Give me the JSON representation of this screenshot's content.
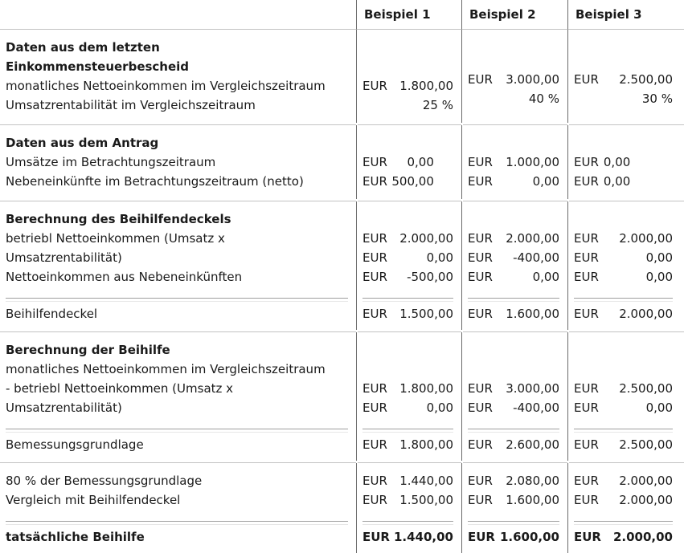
{
  "colors": {
    "background": "#ffffff",
    "text": "#1a1a1a",
    "column_border": "#6b6b6b",
    "row_separator": "#c3c3c3",
    "sum_line_top": "#9e9e9e",
    "sum_line_bottom": "#e7e7e7"
  },
  "header": {
    "examples": [
      "Beispiel 1",
      "Beispiel 2",
      "Beispiel 3"
    ]
  },
  "sections": [
    {
      "heading": [
        "Daten aus dem letzten",
        "Einkommensteuerbescheid"
      ],
      "rows": [
        {
          "label": "monatliches Nettoeinkommen im Vergleichszeitraum",
          "values": [
            {
              "cur": "EUR",
              "amt": "1.800,00"
            },
            {
              "cur": "EUR",
              "amt": "3.000,00"
            },
            {
              "cur": "EUR",
              "amt": "2.500,00"
            }
          ]
        },
        {
          "label": "Umsatzrentabilität im Vergleichszeitraum",
          "values": [
            {
              "amt": "25 %"
            },
            {
              "amt": "40 %"
            },
            {
              "amt": "30 %"
            }
          ]
        }
      ]
    },
    {
      "heading": [
        "Daten aus dem Antrag"
      ],
      "rows": [
        {
          "label": "Umsätze im Betrachtungszeitraum",
          "values": [
            {
              "cur": "EUR",
              "amt": "0,00"
            },
            {
              "cur": "EUR",
              "amt": "1.000,00"
            },
            {
              "cur": "EUR",
              "amt": "0,00"
            }
          ]
        },
        {
          "label": "Nebeneinkünfte im Betrachtungszeitraum (netto)",
          "values": [
            {
              "cur": "EUR",
              "amt": "500,00"
            },
            {
              "cur": "EUR",
              "amt": "0,00"
            },
            {
              "cur": "EUR",
              "amt": "0,00"
            }
          ]
        }
      ]
    },
    {
      "heading": [
        "Berechnung des Beihilfendeckels"
      ],
      "rows": [
        {
          "label": "betriebl Nettoeinkommen (Umsatz x",
          "values": [
            {
              "cur": "EUR",
              "amt": "2.000,00"
            },
            {
              "cur": "EUR",
              "amt": "2.000,00"
            },
            {
              "cur": "EUR",
              "amt": "2.000,00"
            }
          ]
        },
        {
          "label": "Umsatzrentabilität)",
          "values": [
            {
              "cur": "EUR",
              "amt": "0,00"
            },
            {
              "cur": "EUR",
              "amt": "-400,00"
            },
            {
              "cur": "EUR",
              "amt": "0,00"
            }
          ]
        },
        {
          "label": "Nettoeinkommen aus Nebeneinkünften",
          "values": [
            {
              "cur": "EUR",
              "amt": "-500,00"
            },
            {
              "cur": "EUR",
              "amt": "0,00"
            },
            {
              "cur": "EUR",
              "amt": "0,00"
            }
          ]
        }
      ],
      "total": {
        "label": "Beihilfendeckel",
        "values": [
          {
            "cur": "EUR",
            "amt": "1.500,00"
          },
          {
            "cur": "EUR",
            "amt": "1.600,00"
          },
          {
            "cur": "EUR",
            "amt": "2.000,00"
          }
        ]
      }
    },
    {
      "heading": [
        "Berechnung der Beihilfe"
      ],
      "rows": [
        {
          "label": "monatliches Nettoeinkommen im Vergleichszeitraum",
          "values": []
        },
        {
          "label": "- betriebl Nettoeinkommen (Umsatz x",
          "values": [
            {
              "cur": "EUR",
              "amt": "1.800,00"
            },
            {
              "cur": "EUR",
              "amt": "3.000,00"
            },
            {
              "cur": "EUR",
              "amt": "2.500,00"
            }
          ]
        },
        {
          "label": "Umsatzrentabilität)",
          "values": [
            {
              "cur": "EUR",
              "amt": "0,00"
            },
            {
              "cur": "EUR",
              "amt": "-400,00"
            },
            {
              "cur": "EUR",
              "amt": "0,00"
            }
          ]
        }
      ],
      "total": {
        "label": "Bemessungsgrundlage",
        "values": [
          {
            "cur": "EUR",
            "amt": "1.800,00"
          },
          {
            "cur": "EUR",
            "amt": "2.600,00"
          },
          {
            "cur": "EUR",
            "amt": "2.500,00"
          }
        ]
      }
    },
    {
      "heading": [],
      "rows": [
        {
          "label": "80 % der Bemessungsgrundlage",
          "values": [
            {
              "cur": "EUR",
              "amt": "1.440,00"
            },
            {
              "cur": "EUR",
              "amt": "2.080,00"
            },
            {
              "cur": "EUR",
              "amt": "2.000,00"
            }
          ]
        },
        {
          "label": "Vergleich mit Beihilfendeckel",
          "values": [
            {
              "cur": "EUR",
              "amt": "1.500,00"
            },
            {
              "cur": "EUR",
              "amt": "1.600,00"
            },
            {
              "cur": "EUR",
              "amt": "2.000,00"
            }
          ]
        }
      ],
      "total": {
        "label": "tatsächliche Beihilfe",
        "values": [
          {
            "cur": "EUR",
            "amt": "1.440,00"
          },
          {
            "cur": "EUR",
            "amt": "1.600,00"
          },
          {
            "cur": "EUR",
            "amt": "2.000,00"
          }
        ]
      }
    }
  ]
}
